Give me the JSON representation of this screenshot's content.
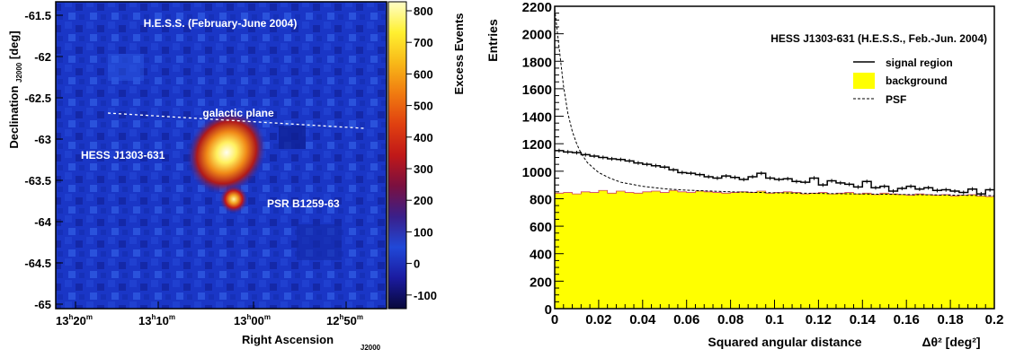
{
  "left_panel": {
    "title": "H.E.S.S. (February-June 2004)",
    "galactic_plane_label": "galactic plane",
    "source_label": "HESS J1303-631",
    "pulsar_label": "PSR B1259-63",
    "ylabel": "Declination",
    "ylabel_sub": "J2000",
    "ylabel_unit": "[deg]",
    "xlabel": "Right Ascension",
    "xlabel_sub": "J2000",
    "y_ticks": [
      "-61.5",
      "-62",
      "-62.5",
      "-63",
      "-63.5",
      "-64",
      "-64.5",
      "-65"
    ],
    "x_ticks": [
      {
        "h": "13",
        "m": "20"
      },
      {
        "h": "13",
        "m": "10"
      },
      {
        "h": "13",
        "m": "00"
      },
      {
        "h": "12",
        "m": "50"
      }
    ],
    "colorbar": {
      "label": "Excess Events",
      "ticks": [
        "800",
        "700",
        "600",
        "500",
        "400",
        "300",
        "200",
        "100",
        "0",
        "-100"
      ],
      "colors": [
        "#08083a",
        "#1b1ba0",
        "#2048d8",
        "#3a1f8a",
        "#7a1040",
        "#c01818",
        "#e04010",
        "#f07a10",
        "#f8b818",
        "#fff030",
        "#fffec8"
      ]
    }
  },
  "chart_data": {
    "type": "histogram",
    "title": "HESS J1303-631 (H.E.S.S., Feb.-Jun. 2004)",
    "xlabel": "Squared angular distance",
    "xlabel_symbol": "Δθ² [deg²]",
    "ylabel": "Entries",
    "xlim": [
      0,
      0.2
    ],
    "ylim": [
      0,
      2200
    ],
    "x_ticks": [
      "0",
      "0.02",
      "0.04",
      "0.06",
      "0.08",
      "0.1",
      "0.12",
      "0.14",
      "0.16",
      "0.18",
      "0.2"
    ],
    "y_ticks": [
      "0",
      "200",
      "400",
      "600",
      "800",
      "1000",
      "1200",
      "1400",
      "1600",
      "1800",
      "2000",
      "2200"
    ],
    "bin_width": 0.004,
    "series": [
      {
        "name": "signal region",
        "style": "solid-step",
        "values": [
          1150,
          1140,
          1135,
          1120,
          1110,
          1100,
          1090,
          1085,
          1075,
          1060,
          1050,
          1040,
          1030,
          1010,
          990,
          985,
          975,
          960,
          950,
          965,
          955,
          940,
          960,
          985,
          950,
          940,
          945,
          925,
          920,
          950,
          900,
          930,
          915,
          905,
          885,
          925,
          880,
          890,
          855,
          875,
          890,
          870,
          880,
          860,
          865,
          855,
          845,
          870,
          835,
          865
        ]
      },
      {
        "name": "background",
        "style": "yellow-fill",
        "color": "#ffff00",
        "values": [
          840,
          845,
          835,
          850,
          845,
          860,
          840,
          855,
          845,
          840,
          850,
          855,
          845,
          860,
          850,
          845,
          855,
          850,
          845,
          840,
          845,
          850,
          845,
          855,
          840,
          845,
          850,
          845,
          835,
          840,
          845,
          835,
          840,
          845,
          835,
          840,
          830,
          840,
          835,
          830,
          825,
          835,
          830,
          825,
          830,
          820,
          825,
          830,
          820,
          815
        ]
      },
      {
        "name": "PSF",
        "style": "dashed",
        "x": [
          0,
          0.002,
          0.004,
          0.006,
          0.008,
          0.01,
          0.012,
          0.015,
          0.02,
          0.025,
          0.03,
          0.04,
          0.05,
          0.06,
          0.08,
          0.1,
          0.12,
          0.14,
          0.16,
          0.18,
          0.2
        ],
        "values": [
          2180,
          1900,
          1620,
          1420,
          1290,
          1200,
          1130,
          1060,
          990,
          950,
          920,
          890,
          872,
          862,
          850,
          843,
          838,
          834,
          830,
          826,
          822
        ]
      }
    ],
    "legend": {
      "placement": "top-right",
      "entries": [
        "signal region",
        "background",
        "PSF"
      ]
    }
  }
}
